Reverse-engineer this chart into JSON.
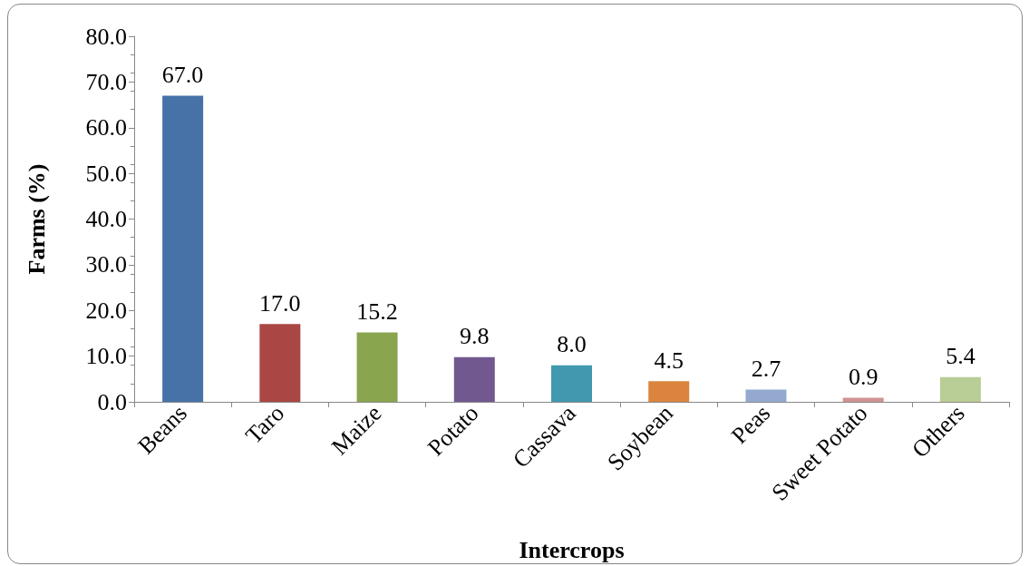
{
  "chart_data": {
    "type": "bar",
    "xlabel": "Intercrops",
    "ylabel": "Farms (%)",
    "categories": [
      "Beans",
      "Taro",
      "Maize",
      "Potato",
      "Cassava",
      "Soybean",
      "Peas",
      "Sweet Potato",
      "Others"
    ],
    "values": [
      67.0,
      17.0,
      15.2,
      9.8,
      8.0,
      4.5,
      2.7,
      0.9,
      5.4
    ],
    "colors": [
      "#4672a8",
      "#aa4643",
      "#89a54e",
      "#71588f",
      "#4198af",
      "#db843d",
      "#93a9cf",
      "#d19392",
      "#b9cd96"
    ],
    "value_labels": [
      "67.0",
      "17.0",
      "15.2",
      "9.8",
      "8.0",
      "4.5",
      "2.7",
      "0.9",
      "5.4"
    ],
    "ylim": [
      0,
      80
    ],
    "yticks": [
      {
        "value": 0,
        "label": "0.0"
      },
      {
        "value": 10,
        "label": "10.0"
      },
      {
        "value": 20,
        "label": "20.0"
      },
      {
        "value": 30,
        "label": "30.0"
      },
      {
        "value": 40,
        "label": "40.0"
      },
      {
        "value": 50,
        "label": "50.0"
      },
      {
        "value": 60,
        "label": "60.0"
      },
      {
        "value": 70,
        "label": "70.0"
      },
      {
        "value": 80,
        "label": "80.0"
      }
    ],
    "grid": false
  }
}
